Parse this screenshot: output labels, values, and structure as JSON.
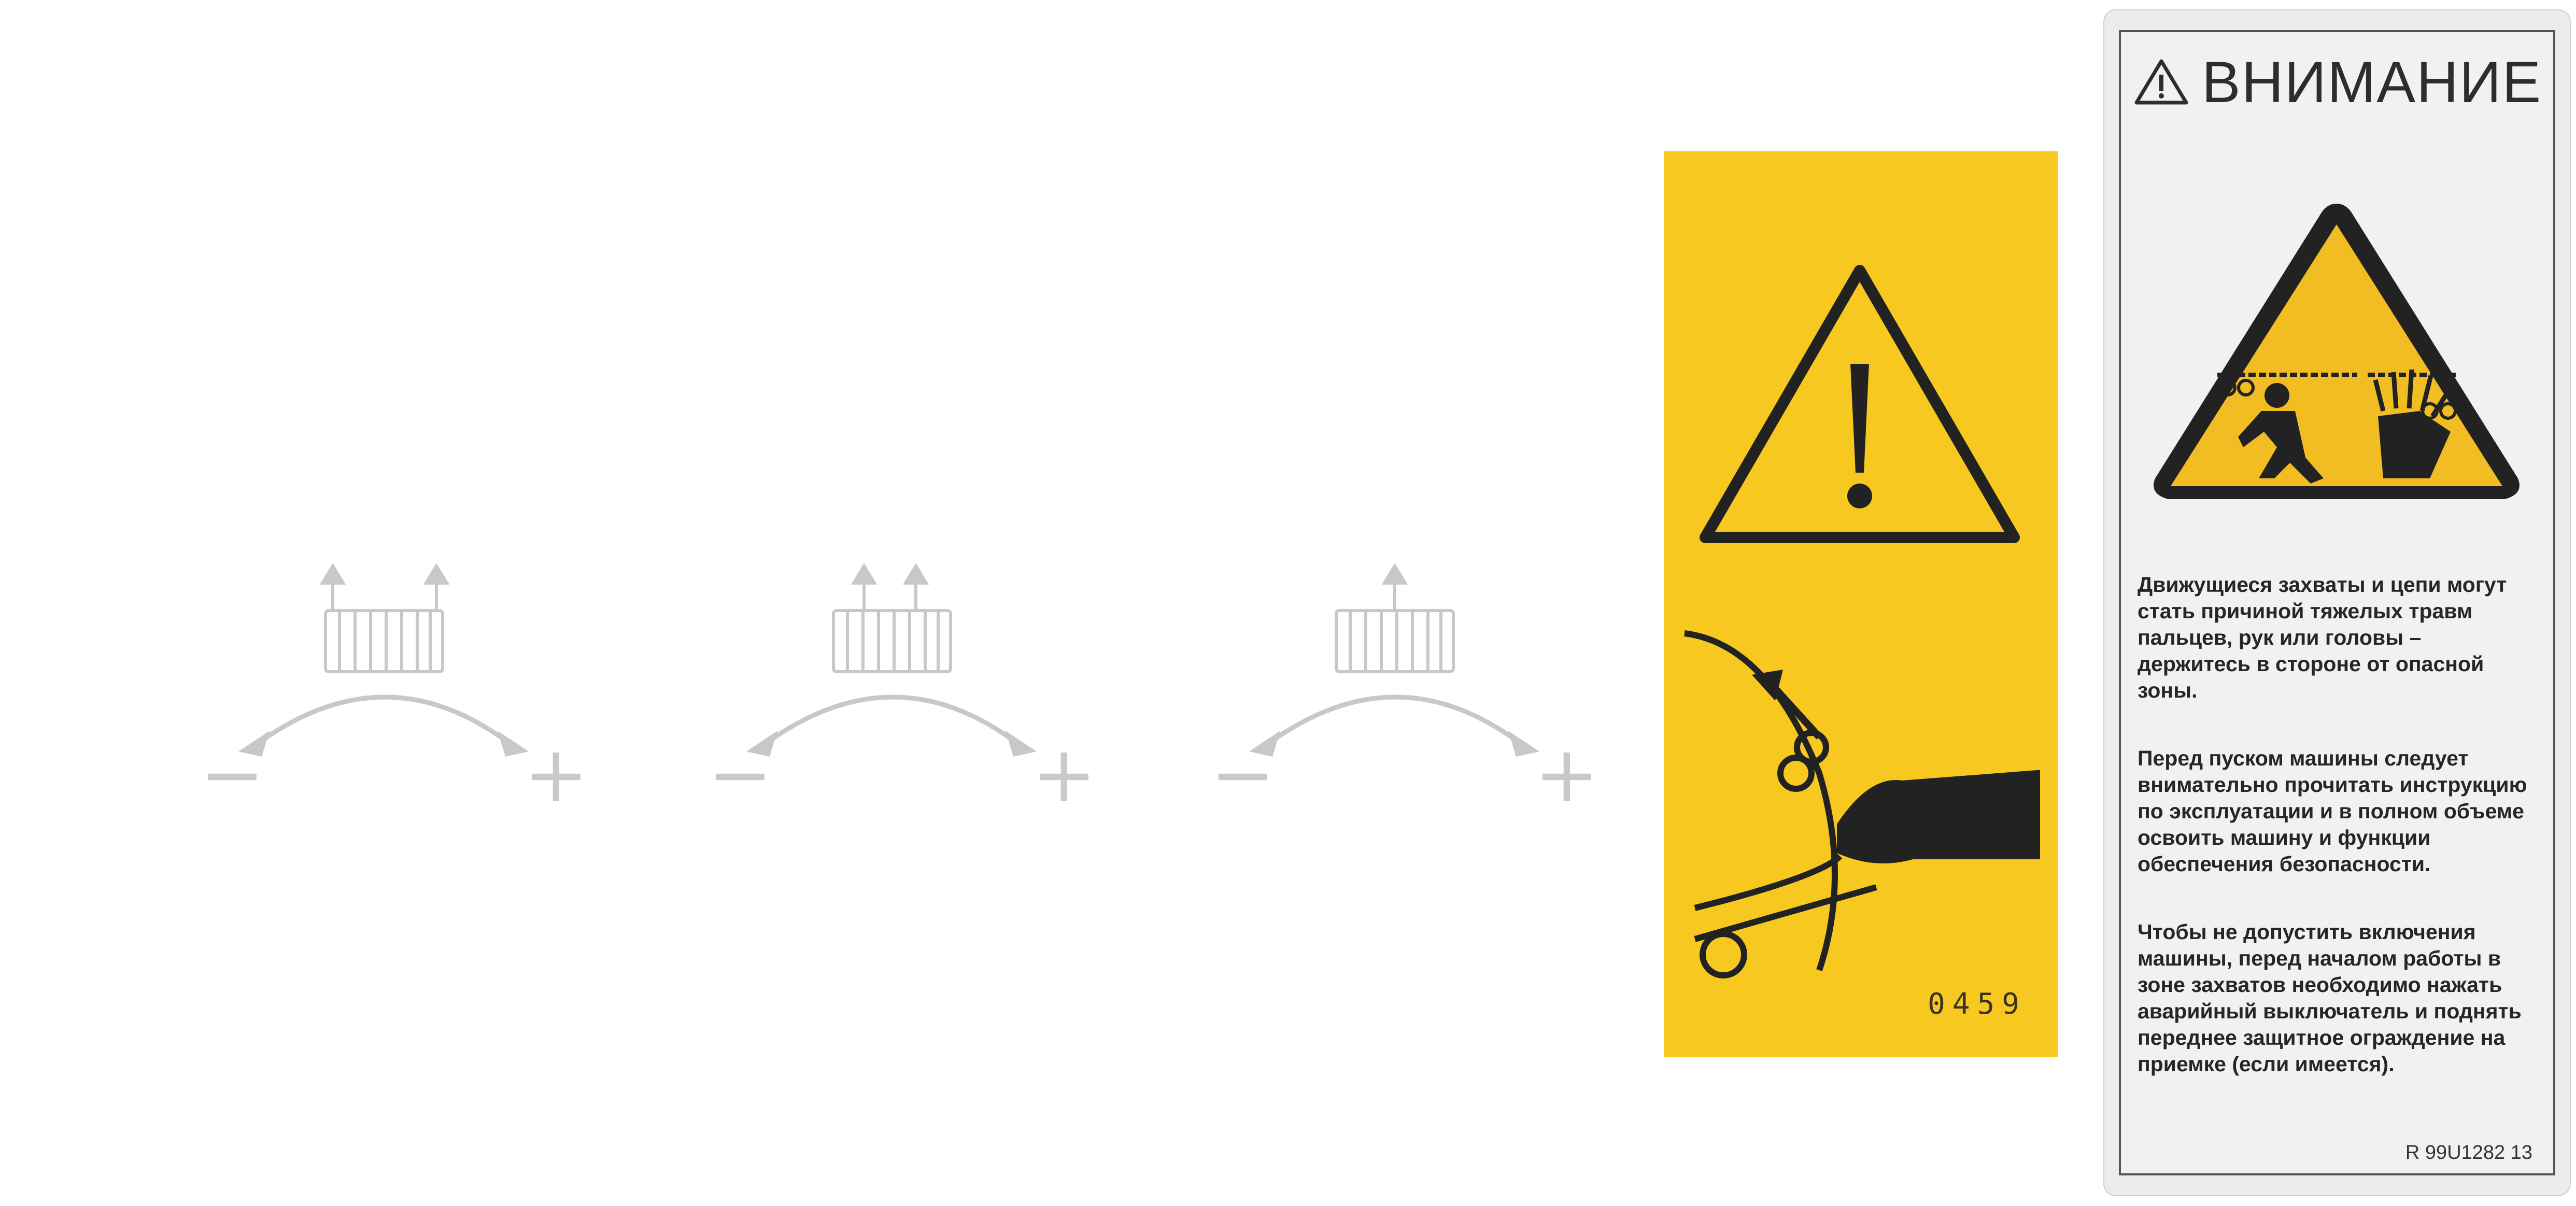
{
  "adjustment_symbols": [
    {
      "minus_label": "−",
      "plus_label": "+"
    },
    {
      "minus_label": "−",
      "plus_label": "+"
    },
    {
      "minus_label": "−",
      "plus_label": "+"
    }
  ],
  "yellow_label": {
    "code": "0459",
    "icons": [
      "warning-triangle-icon",
      "hand-in-rollers-icon"
    ]
  },
  "warning_label": {
    "title": "ВНИМАНИЕ",
    "paragraphs": [
      "Движущиеся захваты и цепи могут стать причиной тяжелых травм пальцев, рук или головы – держитесь в стороне от опасной зоны.",
      "Перед пуском машины следует внимательно прочитать инструкцию по эксплуатации и в полном объеме освоить машину и функции обеспечения безопасности.",
      "Чтобы не допустить включения машины, перед началом работы в зоне захватов необходимо нажать аварийный выключатель и поднять переднее защитное ограждение на приемке (если имеется)."
    ],
    "reference": "R 99U1282 13",
    "colors": {
      "triangle": "#f2bd22",
      "text": "#262626"
    }
  }
}
